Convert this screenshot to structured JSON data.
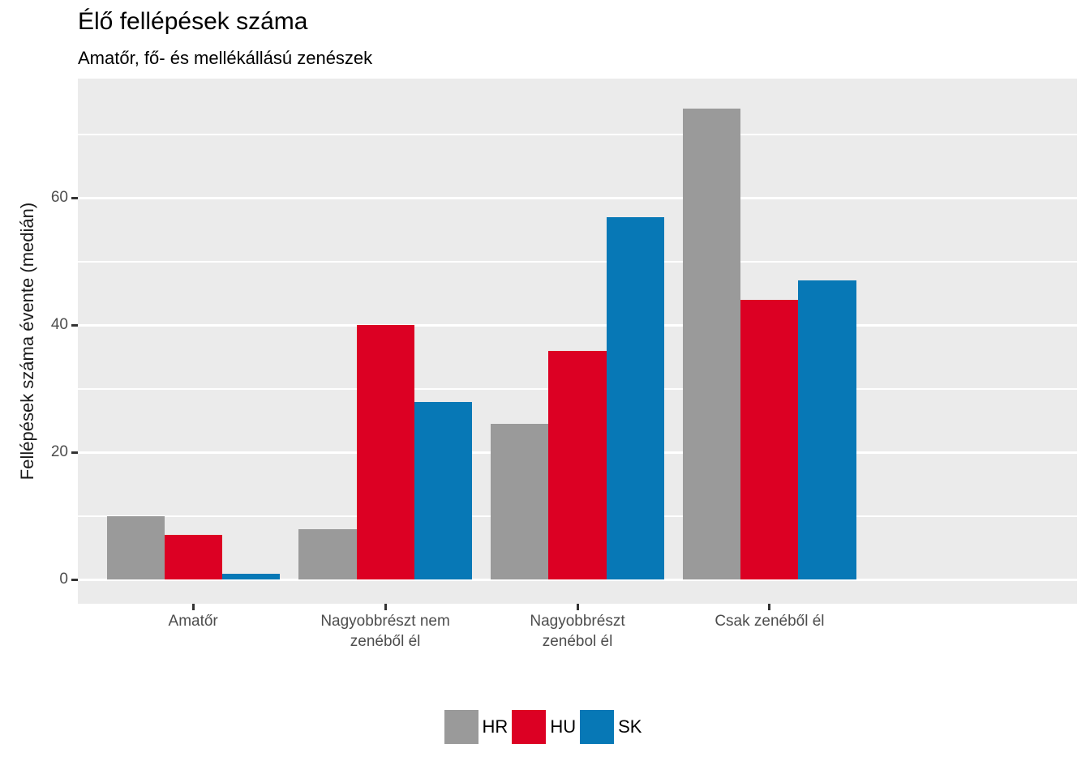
{
  "chart_data": {
    "type": "bar",
    "title": "Élő fellépések száma",
    "subtitle": "Amatőr, fő- és mellékállású zenészek",
    "xlabel": "",
    "ylabel": "Fellépések száma évente (medián)",
    "categories": [
      "Amatőr",
      "Nagyobbrészt nem\nzenéből él",
      "Nagyobbrészt\nzenébol él",
      "Csak zenéből él"
    ],
    "series": [
      {
        "name": "HR",
        "color": "#9A9A9A",
        "values": [
          10,
          8,
          24.5,
          74
        ]
      },
      {
        "name": "HU",
        "color": "#DC0023",
        "values": [
          7,
          40,
          36,
          44
        ]
      },
      {
        "name": "SK",
        "color": "#0778B6",
        "values": [
          1,
          28,
          57,
          47
        ]
      }
    ],
    "y_ticks": [
      0,
      20,
      40,
      60
    ],
    "y_minor_gridlines": [
      10,
      30,
      50,
      70
    ],
    "ylim": [
      -3.76,
      78.74
    ],
    "grid": true,
    "legend_position": "bottom",
    "panel_background": "#EBEBEB",
    "gridline_color": "#FFFFFF"
  }
}
